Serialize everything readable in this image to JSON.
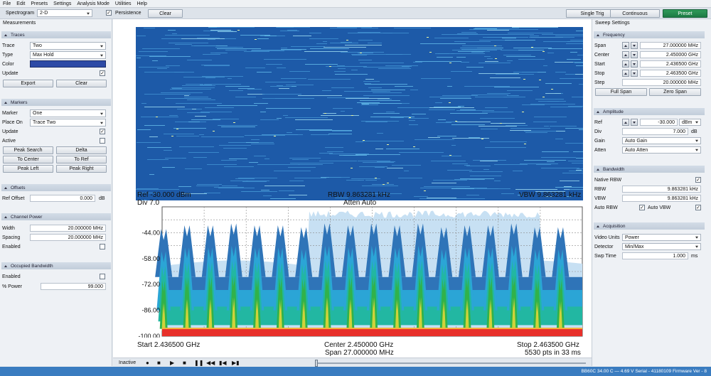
{
  "menu": [
    "File",
    "Edit",
    "Presets",
    "Settings",
    "Analysis Mode",
    "Utilities",
    "Help"
  ],
  "toolbar": {
    "view_label": "Spectrogram",
    "view_value": "2-D",
    "persistence_label": "Persistence",
    "persistence_checked": true,
    "clear_label": "Clear",
    "single_trig_label": "Single Trig",
    "continuous_label": "Continuous",
    "preset_label": "Preset"
  },
  "left": {
    "title": "Measurements",
    "traces": {
      "header": "Traces",
      "trace_label": "Trace",
      "trace_value": "Two",
      "type_label": "Type",
      "type_value": "Max Hold",
      "color_label": "Color",
      "color_value": "#2d4aa6",
      "update_label": "Update",
      "export_label": "Export",
      "clear_label": "Clear"
    },
    "markers": {
      "header": "Markers",
      "marker_label": "Marker",
      "marker_value": "One",
      "placeon_label": "Place On",
      "placeon_value": "Trace Two",
      "update_label": "Update",
      "active_label": "Active",
      "peak_search": "Peak Search",
      "delta": "Delta",
      "to_center": "To Center",
      "to_ref": "To Ref",
      "peak_left": "Peak Left",
      "peak_right": "Peak Right"
    },
    "offsets": {
      "header": "Offsets",
      "ref_offset_label": "Ref Offset",
      "ref_offset_value": "0.000",
      "ref_offset_unit": "dB"
    },
    "channel_power": {
      "header": "Channel Power",
      "width_label": "Width",
      "width_value": "20.000000 MHz",
      "spacing_label": "Spacing",
      "spacing_value": "20.000000 MHz",
      "enabled_label": "Enabled"
    },
    "occupied_bw": {
      "header": "Occupied Bandwidth",
      "enabled_label": "Enabled",
      "power_label": "% Power",
      "power_value": "99.000"
    }
  },
  "right": {
    "title": "Sweep Settings",
    "frequency": {
      "header": "Frequency",
      "span_label": "Span",
      "span_value": "27.000000 MHz",
      "center_label": "Center",
      "center_value": "2.450000 GHz",
      "start_label": "Start",
      "start_value": "2.436500 GHz",
      "stop_label": "Stop",
      "stop_value": "2.463500 GHz",
      "step_label": "Step",
      "step_value": "20.000000 MHz",
      "full_span": "Full Span",
      "zero_span": "Zero Span"
    },
    "amplitude": {
      "header": "Amplitude",
      "ref_label": "Ref",
      "ref_value": "-30.000",
      "ref_unit": "dBm",
      "div_label": "Div",
      "div_value": "7.000",
      "div_unit": "dB",
      "gain_label": "Gain",
      "gain_value": "Auto Gain",
      "atten_label": "Atten",
      "atten_value": "Auto Atten"
    },
    "bandwidth": {
      "header": "Bandwidth",
      "native_rbw_label": "Native RBW",
      "rbw_label": "RBW",
      "rbw_value": "9.863281 kHz",
      "vbw_label": "VBW",
      "vbw_value": "9.863281 kHz",
      "auto_rbw_label": "Auto RBW",
      "auto_vbw_label": "Auto VBW"
    },
    "acquisition": {
      "header": "Acquisition",
      "video_units_label": "Video Units",
      "video_units_value": "Power",
      "detector_label": "Detector",
      "detector_value": "Min/Max",
      "swp_time_label": "Swp Time",
      "swp_time_value": "1.000",
      "swp_time_unit": "ms"
    }
  },
  "chart": {
    "ref_text": "Ref -30.000 dBm",
    "div_text": "Div 7.0",
    "rbw_text": "RBW 9.863281 kHz",
    "atten_text": "Atten Auto",
    "vbw_text": "VBW 9.863281 kHz",
    "start_text": "Start 2.436500 GHz",
    "center_text": "Center 2.450000 GHz",
    "span_text": "Span 27.000000 MHz",
    "stop_text": "Stop 2.463500 GHz",
    "pts_text": "5530 pts in 33 ms"
  },
  "chart_data": {
    "type": "area",
    "ylim": [
      -100,
      -30
    ],
    "xlim": [
      2.4365,
      2.4635
    ],
    "ytick_labels": [
      "-44.00",
      "-58.00",
      "-72.00",
      "-86.00",
      "-100.00"
    ],
    "yticks": [
      -44,
      -58,
      -72,
      -86,
      -100
    ],
    "grid": true,
    "noise_floor": -97,
    "peaks": [
      {
        "x": 2.4366,
        "y": -48
      },
      {
        "x": 2.4381,
        "y": -46
      },
      {
        "x": 2.4396,
        "y": -46
      },
      {
        "x": 2.4411,
        "y": -45
      },
      {
        "x": 2.4426,
        "y": -46
      },
      {
        "x": 2.4441,
        "y": -46
      },
      {
        "x": 2.4456,
        "y": -47
      },
      {
        "x": 2.4471,
        "y": -45
      },
      {
        "x": 2.4486,
        "y": -46
      },
      {
        "x": 2.4501,
        "y": -45
      },
      {
        "x": 2.4516,
        "y": -46
      },
      {
        "x": 2.4531,
        "y": -45
      },
      {
        "x": 2.4546,
        "y": -47
      },
      {
        "x": 2.4561,
        "y": -46
      },
      {
        "x": 2.4576,
        "y": -46
      },
      {
        "x": 2.4591,
        "y": -45
      },
      {
        "x": 2.4606,
        "y": -47
      },
      {
        "x": 2.4621,
        "y": -47
      }
    ]
  },
  "transport": {
    "status": "Inactive"
  },
  "status_bar": "BB60C   34.00 C — 4.69 V  Serial - 41180109   Firmware Ver - 8"
}
